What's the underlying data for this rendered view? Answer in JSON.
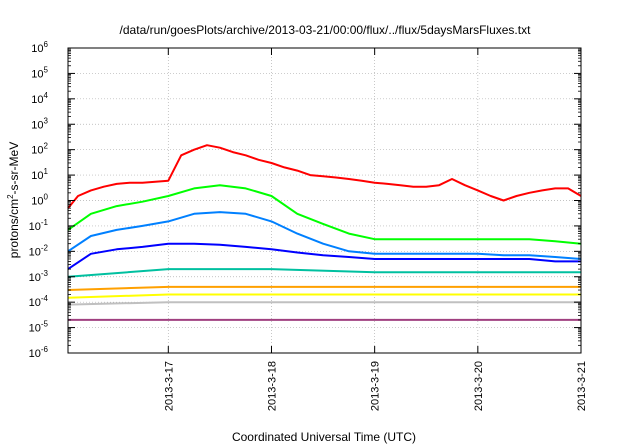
{
  "chart_data": {
    "type": "line",
    "title": "/data/run/goesPlots/archive/2013-03-21/00:00/flux/../flux/5daysMarsFluxes.txt",
    "xlabel": "Coordinated Universal Time (UTC)",
    "ylabel": {
      "prefix": "protons/cm",
      "sup": "2",
      "suffix": "-s-sr-MeV"
    },
    "y_scale": "log",
    "ylim": [
      1e-06,
      1000000.0
    ],
    "y_ticks": [
      {
        "value": 1e-06,
        "base": "10",
        "exp": "-6"
      },
      {
        "value": 1e-05,
        "base": "10",
        "exp": "-5"
      },
      {
        "value": 0.0001,
        "base": "10",
        "exp": "-4"
      },
      {
        "value": 0.001,
        "base": "10",
        "exp": "-3"
      },
      {
        "value": 0.01,
        "base": "10",
        "exp": "-2"
      },
      {
        "value": 0.1,
        "base": "10",
        "exp": "-1"
      },
      {
        "value": 1,
        "base": "10",
        "exp": "0"
      },
      {
        "value": 10,
        "base": "10",
        "exp": "1"
      },
      {
        "value": 100,
        "base": "10",
        "exp": "2"
      },
      {
        "value": 1000,
        "base": "10",
        "exp": "3"
      },
      {
        "value": 10000,
        "base": "10",
        "exp": "4"
      },
      {
        "value": 100000,
        "base": "10",
        "exp": "5"
      },
      {
        "value": 1000000,
        "base": "10",
        "exp": "6"
      }
    ],
    "xlim": [
      "2013-03-16 00:40",
      "2013-03-21 00:00"
    ],
    "x_ticks": [
      "2013-3-17",
      "2013-3-18",
      "2013-3-19",
      "2013-3-20",
      "2013-3-21"
    ],
    "grid": true,
    "legend": "none",
    "series": [
      {
        "color": "#ff0000",
        "x": [
          "2013-03-16 00:40",
          "2013-03-16 03:00",
          "2013-03-16 06:00",
          "2013-03-16 09:00",
          "2013-03-16 12:00",
          "2013-03-16 15:00",
          "2013-03-16 18:00",
          "2013-03-16 21:00",
          "2013-03-17 00:00",
          "2013-03-17 03:00",
          "2013-03-17 06:00",
          "2013-03-17 09:00",
          "2013-03-17 12:00",
          "2013-03-17 15:00",
          "2013-03-17 18:00",
          "2013-03-17 21:00",
          "2013-03-18 00:00",
          "2013-03-18 03:00",
          "2013-03-18 06:00",
          "2013-03-18 09:00",
          "2013-03-18 12:00",
          "2013-03-18 15:00",
          "2013-03-18 18:00",
          "2013-03-18 21:00",
          "2013-03-19 00:00",
          "2013-03-19 03:00",
          "2013-03-19 06:00",
          "2013-03-19 09:00",
          "2013-03-19 12:00",
          "2013-03-19 15:00",
          "2013-03-19 18:00",
          "2013-03-19 21:00",
          "2013-03-20 00:00",
          "2013-03-20 03:00",
          "2013-03-20 06:00",
          "2013-03-20 09:00",
          "2013-03-20 12:00",
          "2013-03-20 15:00",
          "2013-03-20 18:00",
          "2013-03-20 21:00",
          "2013-03-21 00:00"
        ],
        "values": [
          0.5,
          1.5,
          2.5,
          3.5,
          4.5,
          5.0,
          5.0,
          5.5,
          6.0,
          60,
          100,
          150,
          120,
          80,
          60,
          40,
          30,
          20,
          15,
          10,
          9,
          8,
          7,
          6,
          5,
          4.5,
          4,
          3.5,
          3.5,
          4,
          7,
          4,
          2.5,
          1.5,
          1.0,
          1.5,
          2,
          2.5,
          3,
          3,
          1.5
        ]
      },
      {
        "color": "#00ff00",
        "x": [
          "2013-03-16 00:40",
          "2013-03-16 06:00",
          "2013-03-16 12:00",
          "2013-03-16 18:00",
          "2013-03-17 00:00",
          "2013-03-17 06:00",
          "2013-03-17 12:00",
          "2013-03-17 18:00",
          "2013-03-18 00:00",
          "2013-03-18 06:00",
          "2013-03-18 12:00",
          "2013-03-18 18:00",
          "2013-03-19 00:00",
          "2013-03-19 06:00",
          "2013-03-19 12:00",
          "2013-03-19 18:00",
          "2013-03-20 00:00",
          "2013-03-20 06:00",
          "2013-03-20 12:00",
          "2013-03-20 18:00",
          "2013-03-21 00:00"
        ],
        "values": [
          0.07,
          0.3,
          0.6,
          0.9,
          1.5,
          3.0,
          4.0,
          3.0,
          1.5,
          0.3,
          0.12,
          0.05,
          0.03,
          0.03,
          0.03,
          0.03,
          0.03,
          0.03,
          0.03,
          0.025,
          0.02
        ]
      },
      {
        "color": "#0080ff",
        "x": [
          "2013-03-16 00:40",
          "2013-03-16 06:00",
          "2013-03-16 12:00",
          "2013-03-16 18:00",
          "2013-03-17 00:00",
          "2013-03-17 06:00",
          "2013-03-17 12:00",
          "2013-03-17 18:00",
          "2013-03-18 00:00",
          "2013-03-18 06:00",
          "2013-03-18 12:00",
          "2013-03-18 18:00",
          "2013-03-19 00:00",
          "2013-03-19 06:00",
          "2013-03-19 12:00",
          "2013-03-19 18:00",
          "2013-03-20 00:00",
          "2013-03-20 06:00",
          "2013-03-20 12:00",
          "2013-03-20 18:00",
          "2013-03-21 00:00"
        ],
        "values": [
          0.01,
          0.04,
          0.07,
          0.1,
          0.15,
          0.3,
          0.35,
          0.3,
          0.15,
          0.05,
          0.02,
          0.01,
          0.008,
          0.008,
          0.008,
          0.008,
          0.008,
          0.007,
          0.007,
          0.006,
          0.005
        ]
      },
      {
        "color": "#0000ff",
        "x": [
          "2013-03-16 00:40",
          "2013-03-16 06:00",
          "2013-03-16 12:00",
          "2013-03-16 18:00",
          "2013-03-17 00:00",
          "2013-03-17 06:00",
          "2013-03-17 12:00",
          "2013-03-17 18:00",
          "2013-03-18 00:00",
          "2013-03-18 06:00",
          "2013-03-18 12:00",
          "2013-03-18 18:00",
          "2013-03-19 00:00",
          "2013-03-19 06:00",
          "2013-03-19 12:00",
          "2013-03-19 18:00",
          "2013-03-20 00:00",
          "2013-03-20 06:00",
          "2013-03-20 12:00",
          "2013-03-20 18:00",
          "2013-03-21 00:00"
        ],
        "values": [
          0.002,
          0.008,
          0.012,
          0.015,
          0.02,
          0.02,
          0.018,
          0.015,
          0.012,
          0.009,
          0.007,
          0.006,
          0.005,
          0.005,
          0.005,
          0.005,
          0.005,
          0.005,
          0.005,
          0.004,
          0.004
        ]
      },
      {
        "color": "#00c0a0",
        "x": [
          "2013-03-16 00:40",
          "2013-03-17 00:00",
          "2013-03-18 00:00",
          "2013-03-19 00:00",
          "2013-03-20 00:00",
          "2013-03-21 00:00"
        ],
        "values": [
          0.001,
          0.002,
          0.002,
          0.0015,
          0.0015,
          0.0015
        ]
      },
      {
        "color": "#ffa000",
        "x": [
          "2013-03-16 00:40",
          "2013-03-17 00:00",
          "2013-03-18 00:00",
          "2013-03-19 00:00",
          "2013-03-20 00:00",
          "2013-03-21 00:00"
        ],
        "values": [
          0.0003,
          0.0004,
          0.0004,
          0.0004,
          0.0004,
          0.0004
        ]
      },
      {
        "color": "#ffff00",
        "x": [
          "2013-03-16 00:40",
          "2013-03-17 00:00",
          "2013-03-18 00:00",
          "2013-03-19 00:00",
          "2013-03-20 00:00",
          "2013-03-21 00:00"
        ],
        "values": [
          0.00015,
          0.0002,
          0.0002,
          0.0002,
          0.0002,
          0.0002
        ]
      },
      {
        "color": "#c0c0c0",
        "x": [
          "2013-03-16 00:40",
          "2013-03-17 00:00",
          "2013-03-18 00:00",
          "2013-03-19 00:00",
          "2013-03-20 00:00",
          "2013-03-21 00:00"
        ],
        "values": [
          8e-05,
          0.0001,
          0.0001,
          0.0001,
          0.0001,
          0.0001
        ]
      },
      {
        "color": "#a04080",
        "x": [
          "2013-03-16 00:40",
          "2013-03-17 00:00",
          "2013-03-18 00:00",
          "2013-03-19 00:00",
          "2013-03-20 00:00",
          "2013-03-21 00:00"
        ],
        "values": [
          2e-05,
          2e-05,
          2e-05,
          2e-05,
          2e-05,
          2e-05
        ]
      }
    ]
  }
}
